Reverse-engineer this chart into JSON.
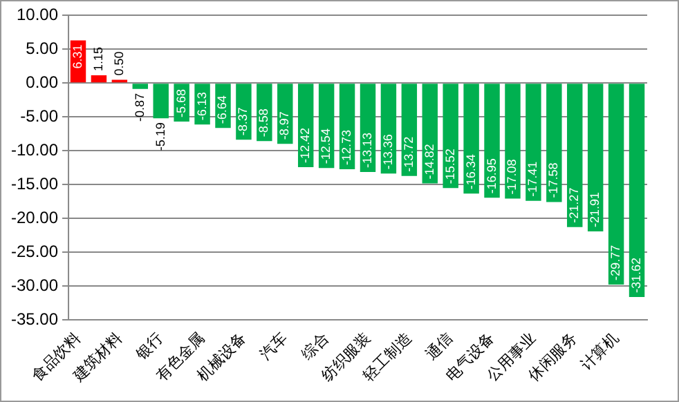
{
  "chart_data": {
    "type": "bar",
    "categories": [
      "食品饮料",
      null,
      "建筑材料",
      null,
      "银行",
      null,
      "有色金属",
      null,
      "机械设备",
      null,
      "汽车",
      null,
      "综合",
      null,
      "纺织服装",
      null,
      "轻工制造",
      null,
      "通信",
      null,
      "电气设备",
      null,
      "公用事业",
      null,
      "休闲服务",
      null,
      "计算机",
      null
    ],
    "values": [
      6.31,
      1.15,
      0.5,
      -0.87,
      -5.19,
      -5.68,
      -6.13,
      -6.64,
      -8.37,
      -8.58,
      -8.97,
      -12.42,
      -12.54,
      -12.73,
      -13.13,
      -13.36,
      -13.72,
      -14.82,
      -15.52,
      -16.34,
      -16.95,
      -17.08,
      -17.41,
      -17.58,
      -21.27,
      -21.91,
      -29.77,
      -31.62
    ],
    "colors": [
      "#ff0000",
      "#ff0000",
      "#ff0000",
      "#00b050",
      "#00b050",
      "#00b050",
      "#00b050",
      "#00b050",
      "#00b050",
      "#00b050",
      "#00b050",
      "#00b050",
      "#00b050",
      "#00b050",
      "#00b050",
      "#00b050",
      "#00b050",
      "#00b050",
      "#00b050",
      "#00b050",
      "#00b050",
      "#00b050",
      "#00b050",
      "#00b050",
      "#00b050",
      "#00b050",
      "#00b050",
      "#00b050"
    ],
    "value_labels": [
      "6.31",
      "1.15",
      "0.50",
      "-0.87",
      "-5.19",
      "-5.68",
      "-6.13",
      "-6.64",
      "-8.37",
      "-8.58",
      "-8.97",
      "-12.42",
      "-12.54",
      "-12.73",
      "-13.13",
      "-13.36",
      "-13.72",
      "-14.82",
      "-15.52",
      "-16.34",
      "-16.95",
      "-17.08",
      "-17.41",
      "-17.58",
      "-21.27",
      "-21.91",
      "-29.77",
      "-31.62"
    ],
    "ylim": [
      -35,
      10
    ],
    "yticks": [
      {
        "value": 10,
        "label": "10.00"
      },
      {
        "value": 5,
        "label": "5.00"
      },
      {
        "value": 0,
        "label": "0.00"
      },
      {
        "value": -5,
        "label": "-5.00"
      },
      {
        "value": -10,
        "label": "-10.00"
      },
      {
        "value": -15,
        "label": "-15.00"
      },
      {
        "value": -20,
        "label": "-20.00"
      },
      {
        "value": -25,
        "label": "-25.00"
      },
      {
        "value": -30,
        "label": "-30.00"
      },
      {
        "value": -35,
        "label": "-35.00"
      }
    ],
    "grid": "y",
    "legend": false
  }
}
